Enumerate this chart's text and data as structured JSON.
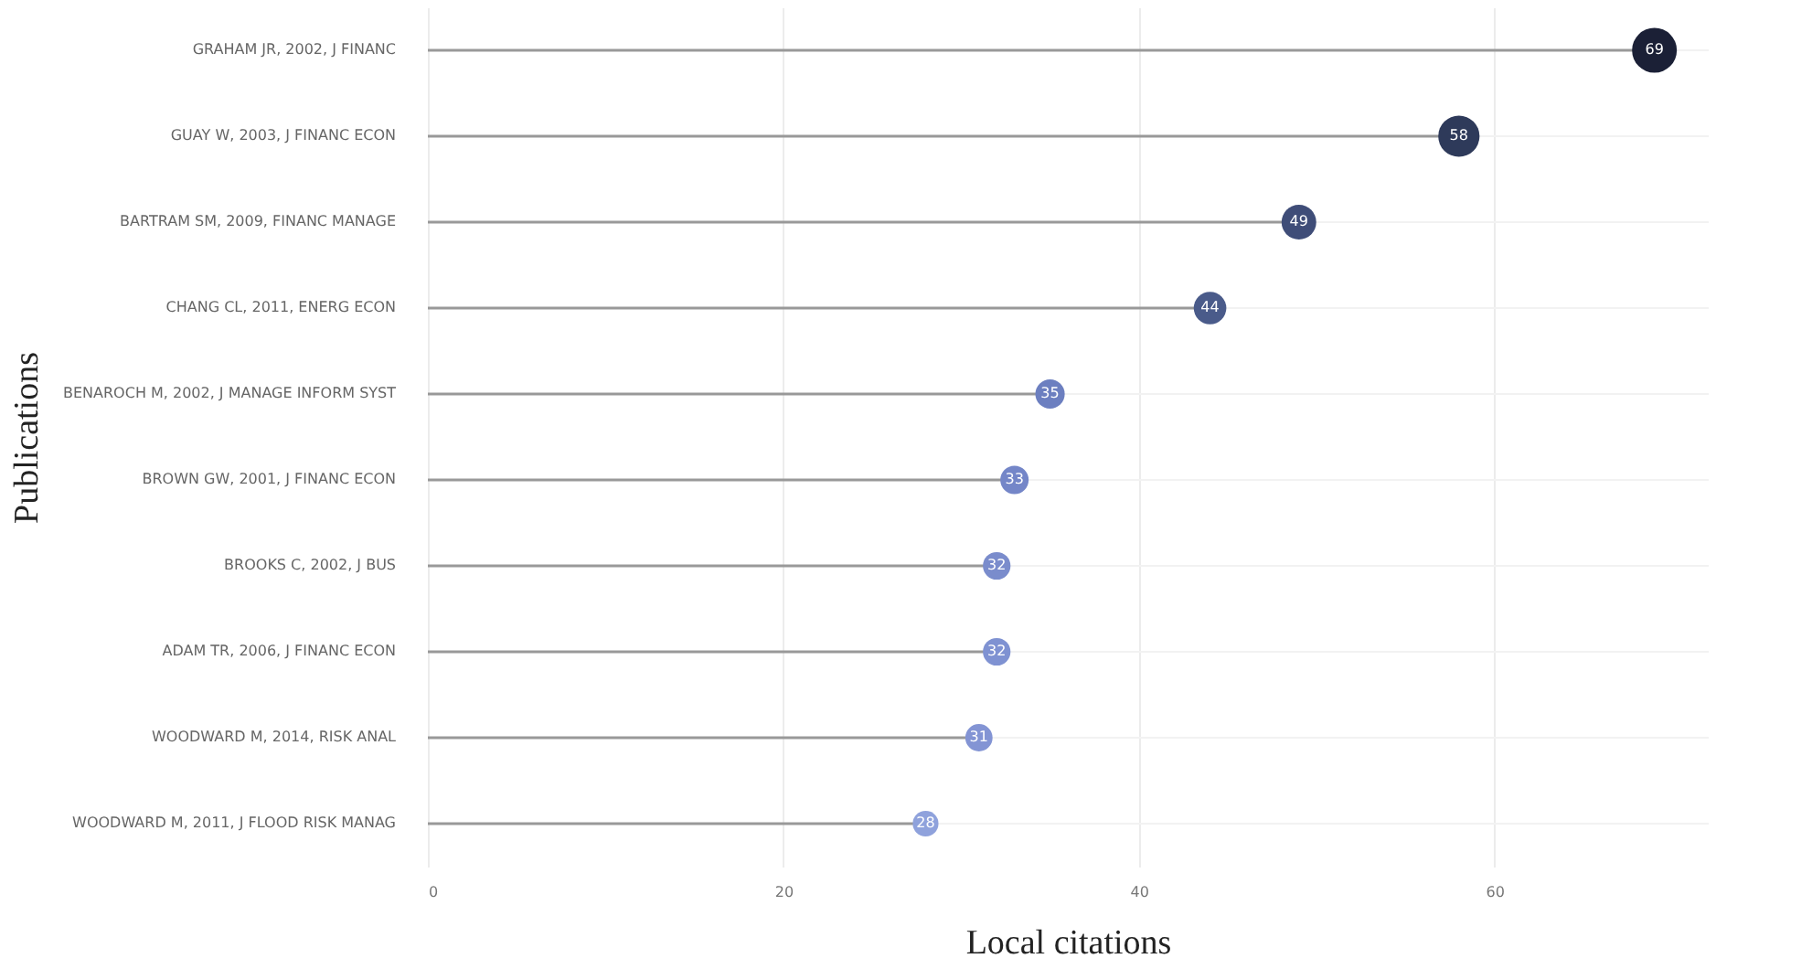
{
  "chart_data": {
    "type": "lollipop",
    "orientation": "horizontal",
    "xlabel": "Local citations",
    "ylabel": "Publications",
    "categories": [
      "GRAHAM JR, 2002, J FINANC",
      "GUAY W, 2003, J FINANC ECON",
      "BARTRAM SM, 2009, FINANC MANAGE",
      "CHANG CL, 2011, ENERG ECON",
      "BENAROCH M, 2002, J MANAGE INFORM SYST",
      "BROWN GW, 2001, J FINANC ECON",
      "BROOKS C, 2002, J BUS",
      "ADAM TR, 2006, J FINANC ECON",
      "WOODWARD M, 2014, RISK ANAL",
      "WOODWARD M, 2011, J FLOOD RISK MANAG"
    ],
    "values": [
      69,
      58,
      49,
      44,
      35,
      33,
      32,
      32,
      31,
      28
    ],
    "sizes": [
      1,
      0.85,
      0.6,
      0.53,
      0.43,
      0.4,
      0.38,
      0.38,
      0.37,
      0.33
    ],
    "colors": [
      "#1b2036",
      "#2e3a5a",
      "#3f4d78",
      "#4a5b8a",
      "#6c7fc0",
      "#7486c8",
      "#7a8ccc",
      "#7f92d2",
      "#8394d4",
      "#8fa2dc"
    ],
    "xlim": [
      0,
      72
    ],
    "xticks": [
      0,
      20,
      40,
      60
    ],
    "grid": true,
    "data_labels": true
  }
}
